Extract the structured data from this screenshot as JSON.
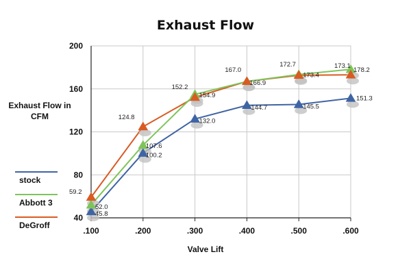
{
  "chart_data": {
    "type": "line",
    "title": "Exhaust Flow",
    "xlabel": "Valve Lift",
    "ylabel": "Exhaust Flow in CFM",
    "categories": [
      ".100",
      ".200",
      ".300",
      ".400",
      ".500",
      ".600"
    ],
    "ylim": [
      40,
      200
    ],
    "yticks": [
      40,
      80,
      120,
      160,
      200
    ],
    "grid": true,
    "legend_position": "left",
    "series": [
      {
        "name": "stock",
        "color": "#3f64a3",
        "values": [
          45.8,
          100.2,
          132.0,
          144.7,
          145.5,
          151.3
        ],
        "labels": [
          "45.8",
          "100.2",
          "132.0",
          "144.7",
          "145.5",
          "151.3"
        ]
      },
      {
        "name": "Abbott 3",
        "color": "#7ec45a",
        "values": [
          52.0,
          107.6,
          154.9,
          166.9,
          173.4,
          178.2
        ],
        "labels": [
          "52.0",
          "107.6",
          "154.9",
          "166.9",
          "173.4",
          "178.2"
        ]
      },
      {
        "name": "DeGroff",
        "color": "#d95a22",
        "values": [
          59.2,
          124.8,
          152.2,
          167.0,
          172.7,
          173.1
        ],
        "labels": [
          "59.2",
          "124.8",
          "152.2",
          "167.0",
          "172.7",
          "173.1"
        ]
      }
    ]
  }
}
